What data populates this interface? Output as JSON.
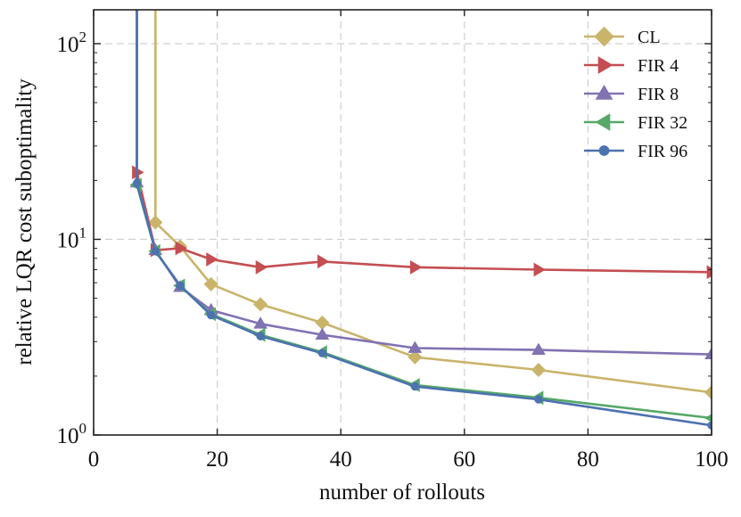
{
  "chart_data": {
    "type": "line",
    "title": "",
    "xlabel": "number of rollouts",
    "ylabel": "relative LQR cost suboptimality",
    "xlim": [
      0,
      100
    ],
    "ylim": [
      1,
      160
    ],
    "yscale": "log",
    "grid": true,
    "legend_position": "top-right",
    "x_ticks": [
      {
        "value": 0,
        "label": "0"
      },
      {
        "value": 20,
        "label": "20"
      },
      {
        "value": 40,
        "label": "40"
      },
      {
        "value": 60,
        "label": "60"
      },
      {
        "value": 80,
        "label": "80"
      },
      {
        "value": 100,
        "label": "100"
      }
    ],
    "y_ticks": [
      {
        "value": 1,
        "base": "10",
        "exp": "0"
      },
      {
        "value": 10,
        "base": "10",
        "exp": "1"
      },
      {
        "value": 100,
        "base": "10",
        "exp": "2"
      }
    ],
    "series": [
      {
        "name": "CL",
        "color": "#C9B46A",
        "marker": "diamond",
        "x": [
          10,
          10,
          14,
          19,
          27,
          37,
          52,
          72,
          100
        ],
        "y": [
          160,
          12.2,
          9.2,
          5.9,
          4.65,
          3.75,
          2.5,
          2.15,
          1.65
        ]
      },
      {
        "name": "FIR 4",
        "color": "#C44E52",
        "marker": "triangle-right",
        "x": [
          7,
          10,
          14,
          19,
          27,
          37,
          52,
          72,
          100
        ],
        "y": [
          22,
          8.8,
          9.0,
          7.9,
          7.2,
          7.7,
          7.2,
          7.0,
          6.8
        ]
      },
      {
        "name": "FIR 8",
        "color": "#8172B2",
        "marker": "triangle-up",
        "x": [
          7,
          7,
          10,
          14,
          19,
          27,
          37,
          52,
          72,
          100
        ],
        "y": [
          160,
          19.5,
          8.8,
          5.7,
          4.35,
          3.7,
          3.25,
          2.78,
          2.72,
          2.58
        ]
      },
      {
        "name": "FIR 32",
        "color": "#55A868",
        "marker": "triangle-left",
        "x": [
          7,
          7,
          10,
          14,
          19,
          27,
          37,
          52,
          72,
          100
        ],
        "y": [
          160,
          19,
          8.7,
          5.8,
          4.15,
          3.25,
          2.65,
          1.8,
          1.55,
          1.22
        ]
      },
      {
        "name": "FIR 96",
        "color": "#4C72B0",
        "marker": "circle",
        "x": [
          7,
          7,
          10,
          14,
          19,
          27,
          37,
          52,
          72,
          100
        ],
        "y": [
          160,
          19.3,
          8.7,
          5.8,
          4.1,
          3.2,
          2.62,
          1.77,
          1.52,
          1.12
        ]
      }
    ]
  }
}
